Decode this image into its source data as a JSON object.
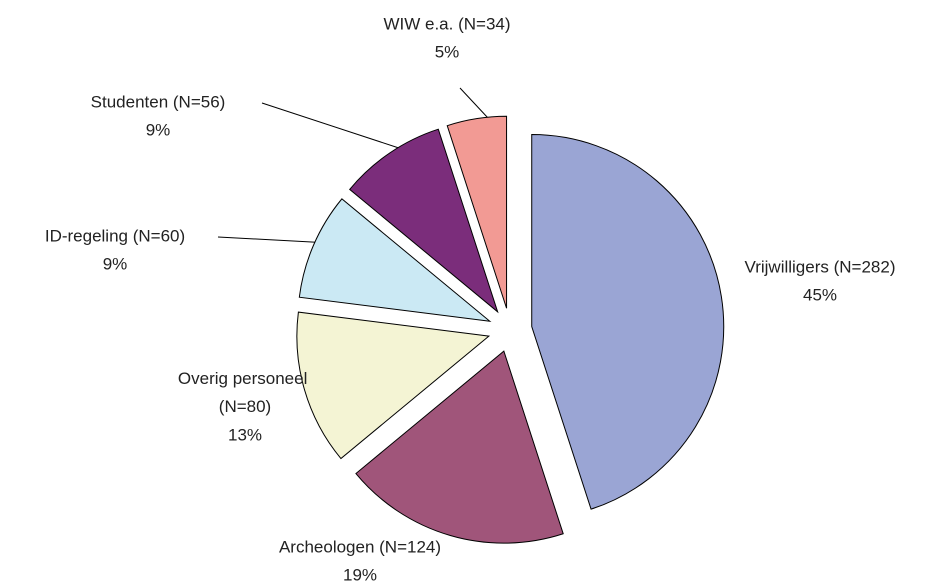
{
  "chart_data": {
    "type": "pie",
    "categories": [
      "Vrijwilligers (N=282)",
      "Archeologen (N=124)",
      "Overig personeel (N=80)",
      "ID-regeling (N=60)",
      "Studenten (N=56)",
      "WIW e.a. (N=34)"
    ],
    "values": [
      45,
      19,
      13,
      9,
      9,
      5
    ],
    "value_labels": [
      "45%",
      "19%",
      "13%",
      "9%",
      "9%",
      "5%"
    ],
    "colors": [
      "#9aa5d4",
      "#a0557a",
      "#f4f4d4",
      "#cbe9f4",
      "#7b2d7b",
      "#f29a94"
    ]
  }
}
